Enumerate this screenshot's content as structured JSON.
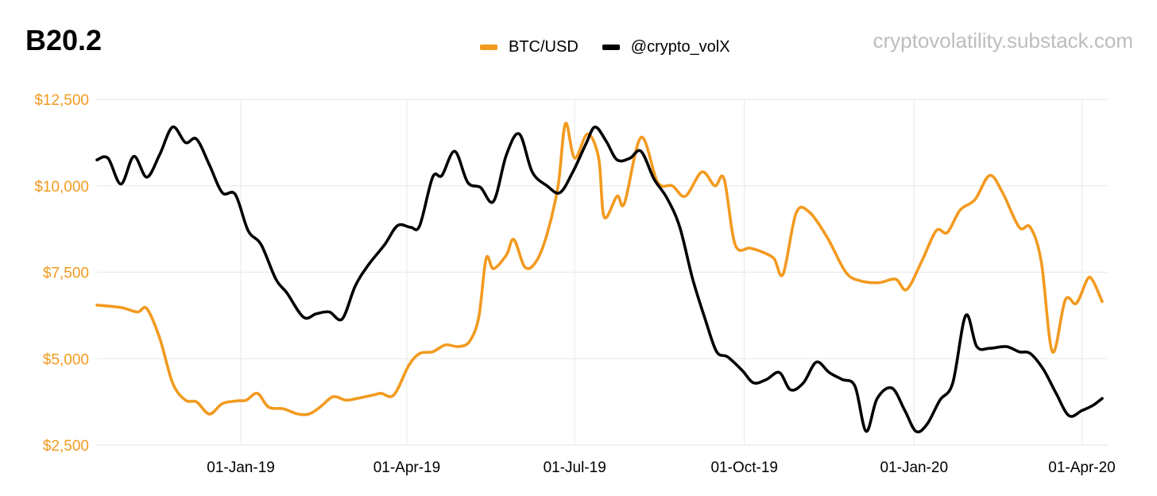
{
  "chart_data": {
    "type": "line",
    "title": "B20.2",
    "source": "cryptovolatility.substack.com",
    "xlabel": "",
    "ylabel": "",
    "x_range": [
      "2018-10-15",
      "2020-04-15"
    ],
    "ylim": [
      2500,
      12500
    ],
    "y_ticks": [
      {
        "value": 12500,
        "label": "$12,500"
      },
      {
        "value": 10000,
        "label": "$10,000"
      },
      {
        "value": 7500,
        "label": "$7,500"
      },
      {
        "value": 5000,
        "label": "$5,000"
      },
      {
        "value": 2500,
        "label": "$2,500"
      }
    ],
    "x_ticks": [
      {
        "value": "2019-01-01",
        "label": "01-Jan-19"
      },
      {
        "value": "2019-04-01",
        "label": "01-Apr-19"
      },
      {
        "value": "2019-07-01",
        "label": "01-Jul-19"
      },
      {
        "value": "2019-10-01",
        "label": "01-Oct-19"
      },
      {
        "value": "2020-01-01",
        "label": "01-Jan-20"
      },
      {
        "value": "2020-04-01",
        "label": "01-Apr-20"
      }
    ],
    "grid": true,
    "legend_position": "top-center",
    "series": [
      {
        "name": "BTC/USD",
        "color": "#f29a1f",
        "points": [
          [
            "2018-10-15",
            6550
          ],
          [
            "2018-10-28",
            6480
          ],
          [
            "2018-11-06",
            6350
          ],
          [
            "2018-11-11",
            6450
          ],
          [
            "2018-11-18",
            5600
          ],
          [
            "2018-11-25",
            4300
          ],
          [
            "2018-12-02",
            3800
          ],
          [
            "2018-12-08",
            3750
          ],
          [
            "2018-12-15",
            3400
          ],
          [
            "2018-12-22",
            3700
          ],
          [
            "2018-12-30",
            3780
          ],
          [
            "2019-01-04",
            3800
          ],
          [
            "2019-01-10",
            4000
          ],
          [
            "2019-01-16",
            3600
          ],
          [
            "2019-01-24",
            3550
          ],
          [
            "2019-02-01",
            3400
          ],
          [
            "2019-02-07",
            3400
          ],
          [
            "2019-02-13",
            3600
          ],
          [
            "2019-02-20",
            3900
          ],
          [
            "2019-02-27",
            3800
          ],
          [
            "2019-03-05",
            3850
          ],
          [
            "2019-03-14",
            3950
          ],
          [
            "2019-03-18",
            4000
          ],
          [
            "2019-03-25",
            3950
          ],
          [
            "2019-04-02",
            4800
          ],
          [
            "2019-04-08",
            5150
          ],
          [
            "2019-04-15",
            5200
          ],
          [
            "2019-04-22",
            5400
          ],
          [
            "2019-04-29",
            5350
          ],
          [
            "2019-05-05",
            5500
          ],
          [
            "2019-05-10",
            6200
          ],
          [
            "2019-05-14",
            7900
          ],
          [
            "2019-05-18",
            7600
          ],
          [
            "2019-05-25",
            8000
          ],
          [
            "2019-05-29",
            8450
          ],
          [
            "2019-06-04",
            7650
          ],
          [
            "2019-06-10",
            7800
          ],
          [
            "2019-06-16",
            8600
          ],
          [
            "2019-06-22",
            10000
          ],
          [
            "2019-06-26",
            11800
          ],
          [
            "2019-07-01",
            10800
          ],
          [
            "2019-07-08",
            11500
          ],
          [
            "2019-07-14",
            10800
          ],
          [
            "2019-07-17",
            9100
          ],
          [
            "2019-07-24",
            9700
          ],
          [
            "2019-07-28",
            9500
          ],
          [
            "2019-08-06",
            11400
          ],
          [
            "2019-08-15",
            10100
          ],
          [
            "2019-08-23",
            10000
          ],
          [
            "2019-08-30",
            9700
          ],
          [
            "2019-09-08",
            10400
          ],
          [
            "2019-09-15",
            10000
          ],
          [
            "2019-09-20",
            10200
          ],
          [
            "2019-09-26",
            8300
          ],
          [
            "2019-10-04",
            8200
          ],
          [
            "2019-10-10",
            8100
          ],
          [
            "2019-10-17",
            7900
          ],
          [
            "2019-10-22",
            7450
          ],
          [
            "2019-10-29",
            9200
          ],
          [
            "2019-11-05",
            9250
          ],
          [
            "2019-11-15",
            8500
          ],
          [
            "2019-11-25",
            7500
          ],
          [
            "2019-12-03",
            7250
          ],
          [
            "2019-12-13",
            7200
          ],
          [
            "2019-12-22",
            7300
          ],
          [
            "2019-12-28",
            7000
          ],
          [
            "2020-01-05",
            7800
          ],
          [
            "2020-01-13",
            8700
          ],
          [
            "2020-01-19",
            8650
          ],
          [
            "2020-01-26",
            9300
          ],
          [
            "2020-02-03",
            9600
          ],
          [
            "2020-02-11",
            10300
          ],
          [
            "2020-02-18",
            9800
          ],
          [
            "2020-02-27",
            8800
          ],
          [
            "2020-03-04",
            8800
          ],
          [
            "2020-03-10",
            7800
          ],
          [
            "2020-03-16",
            5200
          ],
          [
            "2020-03-23",
            6700
          ],
          [
            "2020-03-29",
            6600
          ],
          [
            "2020-04-04",
            7300
          ],
          [
            "2020-04-07",
            7250
          ],
          [
            "2020-04-12",
            6650
          ]
        ]
      },
      {
        "name": "@crypto_volX",
        "color": "#000000",
        "points": [
          [
            "2018-10-15",
            10750
          ],
          [
            "2018-10-21",
            10800
          ],
          [
            "2018-10-28",
            10050
          ],
          [
            "2018-11-04",
            10850
          ],
          [
            "2018-11-11",
            10250
          ],
          [
            "2018-11-18",
            10900
          ],
          [
            "2018-11-25",
            11700
          ],
          [
            "2018-12-02",
            11250
          ],
          [
            "2018-12-08",
            11350
          ],
          [
            "2018-12-15",
            10600
          ],
          [
            "2018-12-22",
            9800
          ],
          [
            "2018-12-29",
            9750
          ],
          [
            "2019-01-05",
            8700
          ],
          [
            "2019-01-12",
            8300
          ],
          [
            "2019-01-20",
            7300
          ],
          [
            "2019-01-26",
            6900
          ],
          [
            "2019-02-04",
            6200
          ],
          [
            "2019-02-11",
            6300
          ],
          [
            "2019-02-18",
            6350
          ],
          [
            "2019-02-25",
            6150
          ],
          [
            "2019-03-04",
            7100
          ],
          [
            "2019-03-11",
            7700
          ],
          [
            "2019-03-20",
            8300
          ],
          [
            "2019-03-27",
            8850
          ],
          [
            "2019-04-03",
            8800
          ],
          [
            "2019-04-08",
            8850
          ],
          [
            "2019-04-15",
            10250
          ],
          [
            "2019-04-20",
            10300
          ],
          [
            "2019-04-27",
            11000
          ],
          [
            "2019-05-04",
            10100
          ],
          [
            "2019-05-11",
            9950
          ],
          [
            "2019-05-18",
            9550
          ],
          [
            "2019-05-25",
            10900
          ],
          [
            "2019-06-01",
            11500
          ],
          [
            "2019-06-08",
            10400
          ],
          [
            "2019-06-16",
            10000
          ],
          [
            "2019-06-23",
            9800
          ],
          [
            "2019-06-30",
            10400
          ],
          [
            "2019-07-07",
            11200
          ],
          [
            "2019-07-12",
            11700
          ],
          [
            "2019-07-18",
            11300
          ],
          [
            "2019-07-24",
            10750
          ],
          [
            "2019-07-31",
            10800
          ],
          [
            "2019-08-06",
            11000
          ],
          [
            "2019-08-13",
            10200
          ],
          [
            "2019-08-20",
            9650
          ],
          [
            "2019-08-27",
            8800
          ],
          [
            "2019-09-03",
            7300
          ],
          [
            "2019-09-10",
            6100
          ],
          [
            "2019-09-16",
            5200
          ],
          [
            "2019-09-22",
            5050
          ],
          [
            "2019-09-30",
            4650
          ],
          [
            "2019-10-06",
            4300
          ],
          [
            "2019-10-13",
            4400
          ],
          [
            "2019-10-20",
            4600
          ],
          [
            "2019-10-26",
            4100
          ],
          [
            "2019-11-02",
            4300
          ],
          [
            "2019-11-09",
            4900
          ],
          [
            "2019-11-16",
            4600
          ],
          [
            "2019-11-23",
            4400
          ],
          [
            "2019-11-30",
            4200
          ],
          [
            "2019-12-06",
            2900
          ],
          [
            "2019-12-12",
            3850
          ],
          [
            "2019-12-20",
            4150
          ],
          [
            "2019-12-27",
            3500
          ],
          [
            "2020-01-02",
            2900
          ],
          [
            "2020-01-08",
            3100
          ],
          [
            "2020-01-15",
            3800
          ],
          [
            "2020-01-22",
            4300
          ],
          [
            "2020-01-29",
            6250
          ],
          [
            "2020-02-04",
            5350
          ],
          [
            "2020-02-11",
            5300
          ],
          [
            "2020-02-20",
            5350
          ],
          [
            "2020-02-27",
            5200
          ],
          [
            "2020-03-04",
            5150
          ],
          [
            "2020-03-11",
            4700
          ],
          [
            "2020-03-18",
            4000
          ],
          [
            "2020-03-25",
            3350
          ],
          [
            "2020-04-01",
            3500
          ],
          [
            "2020-04-07",
            3650
          ],
          [
            "2020-04-12",
            3850
          ]
        ]
      }
    ]
  }
}
